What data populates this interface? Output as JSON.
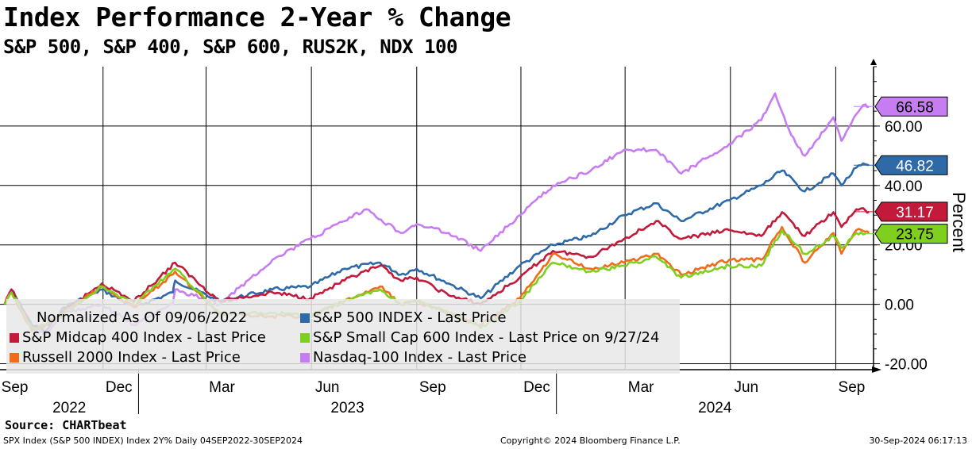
{
  "header": {
    "title": "Index Performance 2-Year % Change",
    "subtitle": "S&P 500, S&P 400, S&P 600, RUS2K, NDX 100"
  },
  "legend": {
    "note": "Normalized As Of 09/06/2022",
    "items": [
      {
        "label": "S&P 500 INDEX - Last Price",
        "color": "#2e6aa8"
      },
      {
        "label": "S&P Midcap 400 Index - Last Price",
        "color": "#c21a3a"
      },
      {
        "label": "S&P Small Cap 600 Index - Last Price on 9/27/24",
        "color": "#7fcf1f"
      },
      {
        "label": "Russell 2000 Index - Last Price",
        "color": "#f26a1b"
      },
      {
        "label": "Nasdaq-100 Index - Last Price",
        "color": "#c77df2"
      }
    ]
  },
  "source": "Source: CHARTbeat",
  "footer": {
    "left": "SPX Index (S&P 500 INDEX) Index 2Y%  Daily 04SEP2022-30SEP2024",
    "middle": "Copyright© 2024 Bloomberg Finance L.P.",
    "right": "30-Sep-2024 06:17:13"
  },
  "chart_data": {
    "type": "line",
    "title": "Index Performance 2-Year % Change",
    "subtitle": "S&P 500, S&P 400, S&P 600, RUS2K, NDX 100",
    "ylabel": "Percent",
    "ylim": [
      -22,
      80
    ],
    "yticks": [
      -20,
      0,
      20,
      40,
      60
    ],
    "ytick_labels": [
      "-20.00",
      "0.00",
      "20.00",
      "40.00",
      "60.00"
    ],
    "xlim": [
      "2022-09-02",
      "2024-10-04"
    ],
    "x_month_ticks": [
      {
        "date": "2022-09-01",
        "label": "Sep"
      },
      {
        "date": "2022-12-01",
        "label": "Dec"
      },
      {
        "date": "2023-03-01",
        "label": "Mar"
      },
      {
        "date": "2023-06-01",
        "label": "Jun"
      },
      {
        "date": "2023-09-01",
        "label": "Sep"
      },
      {
        "date": "2023-12-01",
        "label": "Dec"
      },
      {
        "date": "2024-03-01",
        "label": "Mar"
      },
      {
        "date": "2024-06-01",
        "label": "Jun"
      },
      {
        "date": "2024-09-01",
        "label": "Sep"
      }
    ],
    "x_year_labels": [
      {
        "label": "2022",
        "from": "2022-09-02",
        "to": "2023-01-01"
      },
      {
        "label": "2023",
        "from": "2023-01-01",
        "to": "2024-01-01"
      },
      {
        "label": "2024",
        "from": "2024-01-01",
        "to": "2024-10-04"
      }
    ],
    "grid": true,
    "legend_position": "bottom-left",
    "last_values": [
      {
        "series": "Nasdaq-100 Index - Last Price",
        "label": "66.58",
        "value": 66.58,
        "color": "#c77df2"
      },
      {
        "series": "S&P 500 INDEX - Last Price",
        "label": "46.82",
        "value": 46.82,
        "color": "#2e6aa8"
      },
      {
        "series": "S&P Midcap 400 Index - Last Price",
        "label": "31.17",
        "value": 31.17,
        "color": "#c21a3a"
      },
      {
        "series": "S&P Small Cap 600 Index - Last Price on 9/27/24",
        "label": "23.75",
        "value": 23.75,
        "color": "#7fcf1f"
      }
    ],
    "series": [
      {
        "name": "S&P 500 INDEX - Last Price",
        "color": "#2e6aa8",
        "points": [
          [
            "2022-09-06",
            0
          ],
          [
            "2022-09-12",
            5
          ],
          [
            "2022-09-30",
            -7
          ],
          [
            "2022-10-12",
            -9
          ],
          [
            "2022-10-28",
            -1
          ],
          [
            "2022-11-30",
            5
          ],
          [
            "2022-12-28",
            -1
          ],
          [
            "2023-01-31",
            4
          ],
          [
            "2023-02-02",
            8
          ],
          [
            "2023-03-13",
            1
          ],
          [
            "2023-04-28",
            5
          ],
          [
            "2023-05-31",
            6
          ],
          [
            "2023-06-30",
            12
          ],
          [
            "2023-07-31",
            14
          ],
          [
            "2023-08-18",
            10
          ],
          [
            "2023-09-01",
            12
          ],
          [
            "2023-09-29",
            7
          ],
          [
            "2023-10-27",
            2
          ],
          [
            "2023-11-30",
            13
          ],
          [
            "2023-12-29",
            20
          ],
          [
            "2024-01-31",
            23
          ],
          [
            "2024-02-29",
            30
          ],
          [
            "2024-03-28",
            34
          ],
          [
            "2024-04-19",
            28
          ],
          [
            "2024-05-31",
            35
          ],
          [
            "2024-06-28",
            40
          ],
          [
            "2024-07-16",
            45
          ],
          [
            "2024-08-05",
            38
          ],
          [
            "2024-08-30",
            44
          ],
          [
            "2024-09-06",
            40
          ],
          [
            "2024-09-19",
            46
          ],
          [
            "2024-09-27",
            47.1
          ],
          [
            "2024-09-30",
            46.82
          ]
        ]
      },
      {
        "name": "S&P Midcap 400 Index - Last Price",
        "color": "#c21a3a",
        "points": [
          [
            "2022-09-06",
            0
          ],
          [
            "2022-09-12",
            5
          ],
          [
            "2022-09-30",
            -8
          ],
          [
            "2022-10-12",
            -7
          ],
          [
            "2022-11-30",
            7
          ],
          [
            "2022-12-28",
            1
          ],
          [
            "2023-02-02",
            14
          ],
          [
            "2023-03-13",
            1
          ],
          [
            "2023-04-28",
            4
          ],
          [
            "2023-05-31",
            2
          ],
          [
            "2023-06-30",
            8
          ],
          [
            "2023-07-31",
            13
          ],
          [
            "2023-08-18",
            8
          ],
          [
            "2023-09-01",
            9
          ],
          [
            "2023-09-29",
            3
          ],
          [
            "2023-10-27",
            0
          ],
          [
            "2023-11-30",
            9
          ],
          [
            "2023-12-29",
            18
          ],
          [
            "2024-01-31",
            16
          ],
          [
            "2024-02-29",
            22
          ],
          [
            "2024-03-28",
            28
          ],
          [
            "2024-04-19",
            22
          ],
          [
            "2024-05-31",
            25
          ],
          [
            "2024-06-28",
            23
          ],
          [
            "2024-07-16",
            31
          ],
          [
            "2024-08-05",
            23
          ],
          [
            "2024-08-30",
            31
          ],
          [
            "2024-09-06",
            26
          ],
          [
            "2024-09-19",
            32
          ],
          [
            "2024-09-27",
            31.6
          ],
          [
            "2024-09-30",
            31.17
          ]
        ]
      },
      {
        "name": "S&P Small Cap 600 Index - Last Price on 9/27/24",
        "color": "#7fcf1f",
        "points": [
          [
            "2022-09-06",
            0
          ],
          [
            "2022-09-12",
            4
          ],
          [
            "2022-09-30",
            -8
          ],
          [
            "2022-10-12",
            -7
          ],
          [
            "2022-11-30",
            6
          ],
          [
            "2022-12-28",
            0
          ],
          [
            "2023-02-02",
            12
          ],
          [
            "2023-03-13",
            -3
          ],
          [
            "2023-04-28",
            -3
          ],
          [
            "2023-05-31",
            -4
          ],
          [
            "2023-06-30",
            1
          ],
          [
            "2023-07-31",
            5
          ],
          [
            "2023-08-18",
            0
          ],
          [
            "2023-09-01",
            1
          ],
          [
            "2023-09-29",
            -3
          ],
          [
            "2023-10-27",
            -8
          ],
          [
            "2023-11-30",
            1
          ],
          [
            "2023-12-29",
            14
          ],
          [
            "2024-01-31",
            11
          ],
          [
            "2024-02-29",
            13
          ],
          [
            "2024-03-28",
            16
          ],
          [
            "2024-04-19",
            9
          ],
          [
            "2024-05-31",
            13
          ],
          [
            "2024-06-28",
            13
          ],
          [
            "2024-07-16",
            25
          ],
          [
            "2024-08-05",
            17
          ],
          [
            "2024-08-30",
            23
          ],
          [
            "2024-09-06",
            19
          ],
          [
            "2024-09-19",
            24
          ],
          [
            "2024-09-27",
            23.75
          ]
        ]
      },
      {
        "name": "Russell 2000 Index - Last Price",
        "color": "#f26a1b",
        "points": [
          [
            "2022-09-06",
            0
          ],
          [
            "2022-09-12",
            4
          ],
          [
            "2022-09-30",
            -9
          ],
          [
            "2022-10-12",
            -7
          ],
          [
            "2022-11-30",
            6
          ],
          [
            "2022-12-28",
            -1
          ],
          [
            "2023-02-02",
            11
          ],
          [
            "2023-03-13",
            -3
          ],
          [
            "2023-04-28",
            -4
          ],
          [
            "2023-05-31",
            -4
          ],
          [
            "2023-06-30",
            1
          ],
          [
            "2023-07-31",
            6
          ],
          [
            "2023-08-18",
            0
          ],
          [
            "2023-09-01",
            1
          ],
          [
            "2023-09-29",
            -3
          ],
          [
            "2023-10-27",
            -7
          ],
          [
            "2023-11-30",
            2
          ],
          [
            "2023-12-29",
            17
          ],
          [
            "2024-01-31",
            12
          ],
          [
            "2024-02-29",
            14
          ],
          [
            "2024-03-28",
            17
          ],
          [
            "2024-04-19",
            10
          ],
          [
            "2024-05-31",
            15
          ],
          [
            "2024-06-28",
            15
          ],
          [
            "2024-07-16",
            26
          ],
          [
            "2024-08-05",
            14
          ],
          [
            "2024-08-30",
            24
          ],
          [
            "2024-09-06",
            17
          ],
          [
            "2024-09-19",
            25
          ],
          [
            "2024-09-27",
            24.4
          ],
          [
            "2024-09-30",
            24
          ]
        ]
      },
      {
        "name": "Nasdaq-100 Index - Last Price",
        "color": "#c77df2",
        "points": [
          [
            "2022-09-06",
            0
          ],
          [
            "2022-09-12",
            5
          ],
          [
            "2022-09-30",
            -8
          ],
          [
            "2022-10-12",
            -10
          ],
          [
            "2022-10-28",
            -3
          ],
          [
            "2022-11-30",
            0
          ],
          [
            "2022-12-28",
            -7
          ],
          [
            "2023-01-31",
            0
          ],
          [
            "2023-02-02",
            5
          ],
          [
            "2023-03-13",
            0
          ],
          [
            "2023-04-28",
            15
          ],
          [
            "2023-05-31",
            22
          ],
          [
            "2023-06-30",
            28
          ],
          [
            "2023-07-19",
            32
          ],
          [
            "2023-08-18",
            24
          ],
          [
            "2023-09-01",
            27
          ],
          [
            "2023-09-29",
            24
          ],
          [
            "2023-10-27",
            18
          ],
          [
            "2023-11-30",
            30
          ],
          [
            "2023-12-29",
            40
          ],
          [
            "2024-01-31",
            45
          ],
          [
            "2024-02-29",
            52
          ],
          [
            "2024-03-28",
            52
          ],
          [
            "2024-04-19",
            44
          ],
          [
            "2024-05-31",
            54
          ],
          [
            "2024-06-28",
            62
          ],
          [
            "2024-07-10",
            71
          ],
          [
            "2024-07-24",
            57
          ],
          [
            "2024-08-05",
            50
          ],
          [
            "2024-08-30",
            63
          ],
          [
            "2024-09-06",
            55
          ],
          [
            "2024-09-19",
            64
          ],
          [
            "2024-09-27",
            67.3
          ],
          [
            "2024-09-30",
            66.58
          ]
        ]
      }
    ]
  }
}
